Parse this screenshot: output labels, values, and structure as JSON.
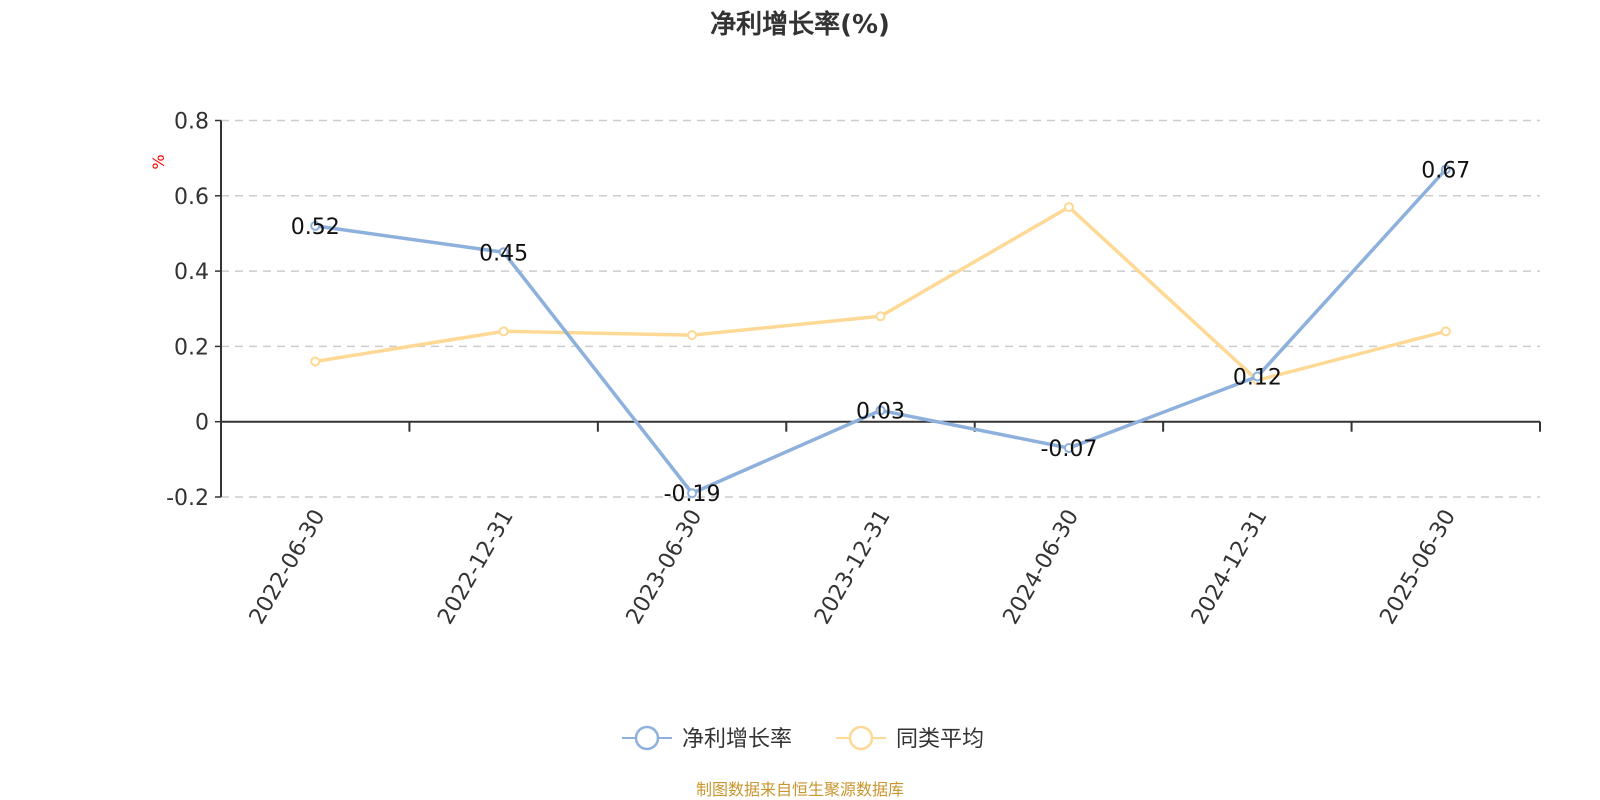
{
  "chart_data": {
    "type": "line",
    "title": "净利增长率(%)",
    "ylabel": "%",
    "xlabel": "",
    "categories": [
      "2022-06-30",
      "2022-12-31",
      "2023-06-30",
      "2023-12-31",
      "2024-06-30",
      "2024-12-31",
      "2025-06-30"
    ],
    "ylim": [
      -0.2,
      0.8
    ],
    "yticks": [
      -0.2,
      0,
      0.2,
      0.4,
      0.6,
      0.8
    ],
    "grid": true,
    "legend_position": "bottom",
    "series": [
      {
        "name": "净利增长率",
        "color": "#8eb0dc",
        "values": [
          0.52,
          0.45,
          -0.19,
          0.03,
          -0.07,
          0.12,
          0.67
        ],
        "show_labels": true
      },
      {
        "name": "同类平均",
        "color": "#fdd995",
        "values": [
          0.16,
          0.24,
          0.23,
          0.28,
          0.57,
          0.11,
          0.24
        ],
        "show_labels": false
      }
    ],
    "source_note": "制图数据来自恒生聚源数据库",
    "colors": {
      "ylabel": "#ff0000",
      "source_note": "#c8962e"
    }
  }
}
